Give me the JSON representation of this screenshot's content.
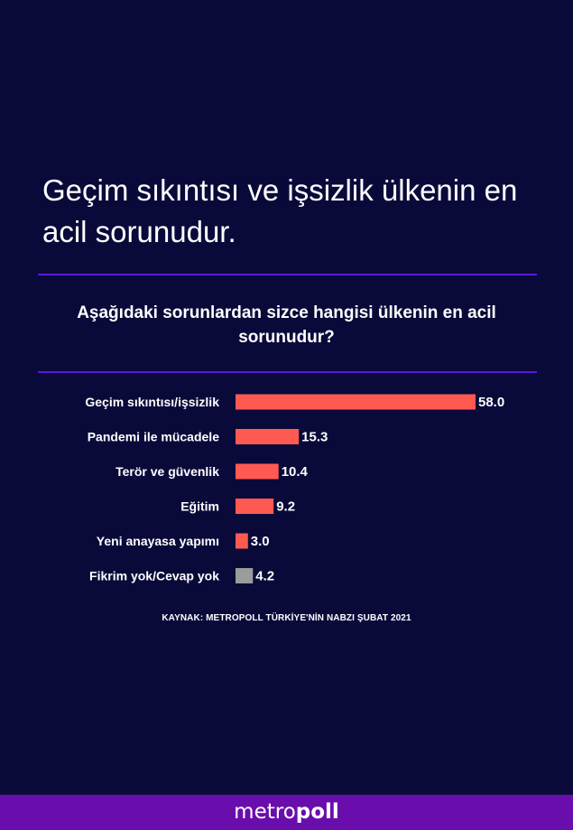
{
  "headline": "Geçim sıkıntısı ve işsizlik ülkenin en acil sorunudur.",
  "chart_data": {
    "type": "bar",
    "orientation": "horizontal",
    "title": "Aşağıdaki sorunlardan sizce hangisi ülkenin en acil sorunudur?",
    "categories": [
      "Geçim sıkıntısı/işsizlik",
      "Pandemi ile mücadele",
      "Terör ve güvenlik",
      "Eğitim",
      "Yeni anayasa yapımı",
      "Fikrim yok/Cevap yok"
    ],
    "values": [
      58.0,
      15.3,
      10.4,
      9.2,
      3.0,
      4.2
    ],
    "value_labels": [
      "58.0",
      "15.3",
      "10.4",
      "9.2",
      "3.0",
      "4.2"
    ],
    "bar_colors": [
      "#ff5a52",
      "#ff5a52",
      "#ff5a52",
      "#ff5a52",
      "#ff5a52",
      "#9b9b9b"
    ],
    "xlabel": "",
    "ylabel": "",
    "xlim": [
      0,
      58
    ],
    "grid": false
  },
  "source": "KAYNAK: METROPOLL TÜRKİYE'NİN NABZI ŞUBAT 2021",
  "footer": {
    "logo_light": "metro",
    "logo_bold": "poll"
  },
  "colors": {
    "background": "#0a0a3a",
    "rule": "#5a18d6",
    "bar": "#ff5a52",
    "bar_neutral": "#9b9b9b",
    "footer_bg": "#6a0dad"
  }
}
